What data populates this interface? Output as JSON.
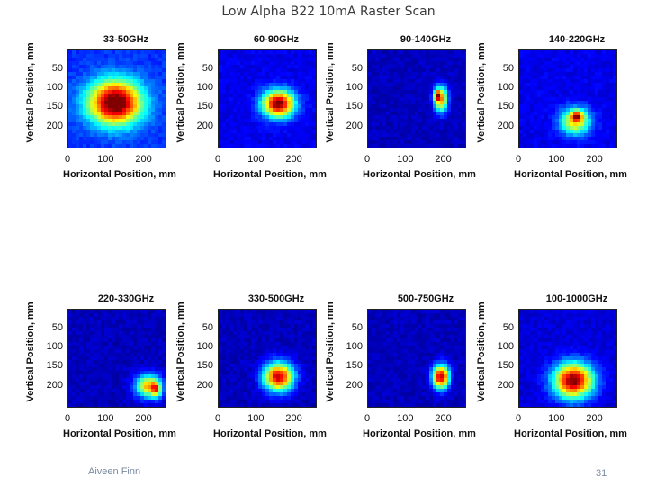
{
  "slide": {
    "title": "Low Alpha B22 10mA Raster Scan",
    "author": "Aiveen Finn",
    "page_number": "31"
  },
  "chart_data": [
    {
      "type": "heatmap",
      "title": "33-50GHz",
      "xlabel": "Horizontal Position, mm",
      "ylabel": "Vertical Position, mm",
      "xticks": [
        "0",
        "100",
        "200"
      ],
      "yticks": [
        "50",
        "100",
        "150",
        "200"
      ],
      "xlim": [
        0,
        260
      ],
      "ylim": [
        0,
        260
      ],
      "blobs": [
        {
          "x": 125,
          "y": 140,
          "sx": 70,
          "sy": 58,
          "peak": 1.0
        }
      ],
      "background": 0.12
    },
    {
      "type": "heatmap",
      "title": "60-90GHz",
      "xlabel": "Horizontal Position, mm",
      "ylabel": "Vertical Position, mm",
      "xticks": [
        "0",
        "100",
        "200"
      ],
      "yticks": [
        "50",
        "100",
        "150",
        "200"
      ],
      "xlim": [
        0,
        260
      ],
      "ylim": [
        0,
        260
      ],
      "blobs": [
        {
          "x": 160,
          "y": 143,
          "sx": 42,
          "sy": 35,
          "peak": 1.0
        }
      ],
      "background": 0.05
    },
    {
      "type": "heatmap",
      "title": "90-140GHz",
      "xlabel": "Horizontal Position, mm",
      "ylabel": "Vertical Position, mm",
      "xticks": [
        "0",
        "100",
        "200"
      ],
      "yticks": [
        "50",
        "100",
        "150",
        "200"
      ],
      "xlim": [
        0,
        260
      ],
      "ylim": [
        0,
        260
      ],
      "blobs": [
        {
          "x": 195,
          "y": 130,
          "sx": 18,
          "sy": 34,
          "peak": 0.75
        },
        {
          "x": 185,
          "y": 120,
          "sx": 8,
          "sy": 12,
          "peak": 0.55
        }
      ],
      "background": 0.0
    },
    {
      "type": "heatmap",
      "title": "140-220GHz",
      "xlabel": "Horizontal Position, mm",
      "ylabel": "Vertical Position, mm",
      "xticks": [
        "0",
        "100",
        "200"
      ],
      "yticks": [
        "50",
        "100",
        "150",
        "200"
      ],
      "xlim": [
        0,
        260
      ],
      "ylim": [
        0,
        260
      ],
      "blobs": [
        {
          "x": 150,
          "y": 190,
          "sx": 40,
          "sy": 35,
          "peak": 0.6
        },
        {
          "x": 155,
          "y": 175,
          "sx": 16,
          "sy": 14,
          "peak": 0.5
        }
      ],
      "background": 0.05
    },
    {
      "type": "heatmap",
      "title": "220-330GHz",
      "xlabel": "Horizontal Position, mm",
      "ylabel": "Vertical Position, mm",
      "xticks": [
        "0",
        "100",
        "200"
      ],
      "yticks": [
        "50",
        "100",
        "150",
        "200"
      ],
      "xlim": [
        0,
        260
      ],
      "ylim": [
        0,
        260
      ],
      "blobs": [
        {
          "x": 215,
          "y": 205,
          "sx": 35,
          "sy": 30,
          "peak": 0.7
        },
        {
          "x": 235,
          "y": 215,
          "sx": 12,
          "sy": 20,
          "peak": 0.45
        }
      ],
      "background": 0.0
    },
    {
      "type": "heatmap",
      "title": "330-500GHz",
      "xlabel": "Horizontal Position, mm",
      "ylabel": "Vertical Position, mm",
      "xticks": [
        "0",
        "100",
        "200"
      ],
      "yticks": [
        "50",
        "100",
        "150",
        "200"
      ],
      "xlim": [
        0,
        260
      ],
      "ylim": [
        0,
        260
      ],
      "blobs": [
        {
          "x": 160,
          "y": 180,
          "sx": 40,
          "sy": 38,
          "peak": 0.95
        }
      ],
      "background": 0.0
    },
    {
      "type": "heatmap",
      "title": "500-750GHz",
      "xlabel": "Horizontal Position, mm",
      "ylabel": "Vertical Position, mm",
      "xticks": [
        "0",
        "100",
        "200"
      ],
      "yticks": [
        "50",
        "100",
        "150",
        "200"
      ],
      "xlim": [
        0,
        260
      ],
      "ylim": [
        0,
        260
      ],
      "blobs": [
        {
          "x": 195,
          "y": 180,
          "sx": 22,
          "sy": 32,
          "peak": 0.95
        }
      ],
      "background": 0.0
    },
    {
      "type": "heatmap",
      "title": "100-1000GHz",
      "xlabel": "Horizontal Position, mm",
      "ylabel": "Vertical Position, mm",
      "xticks": [
        "0",
        "100",
        "200"
      ],
      "yticks": [
        "50",
        "100",
        "150",
        "200"
      ],
      "xlim": [
        0,
        260
      ],
      "ylim": [
        0,
        260
      ],
      "blobs": [
        {
          "x": 145,
          "y": 190,
          "sx": 52,
          "sy": 46,
          "peak": 1.0
        }
      ],
      "background": 0.03
    }
  ]
}
